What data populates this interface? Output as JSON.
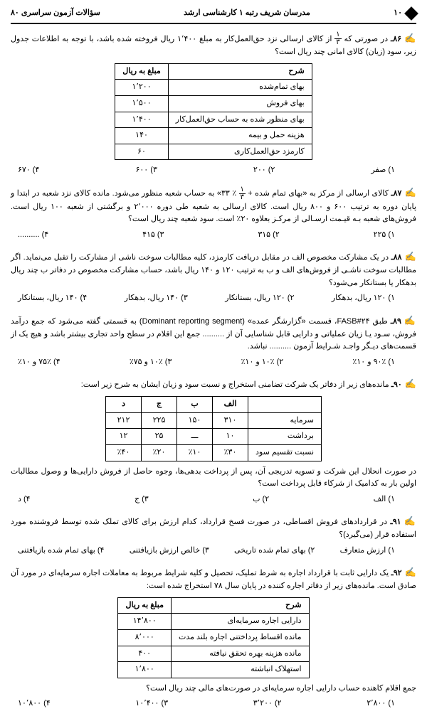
{
  "header": {
    "right_page": "۱۰",
    "center": "مدرسان شریف رتبه ۱ کارشناسی ارشد",
    "left": "سؤالات آزمون سراسری  ۸۰"
  },
  "q86": {
    "num": "۸۶ـ",
    "text_a": "در صورتی که ",
    "frac_n": "۱",
    "frac_d": "۳",
    "text_b": " از کالای ارسالی نزد حق‌العمل‌کار به مبلغ ۱٬۴۰۰ ریال فروخته شده باشد، با توجه به اطلاعات جدول زیر، سود (زیان) کالای امانی چند ریال است؟",
    "table_header_desc": "شرح",
    "table_header_amt": "مبلغ به ریال",
    "rows": [
      {
        "desc": "بهای تمام‌شده",
        "amt": "۱٬۲۰۰"
      },
      {
        "desc": "بهای فروش",
        "amt": "۱٬۵۰۰"
      },
      {
        "desc": "بهای منظور شده به حساب حق‌العمل‌کار",
        "amt": "۱٬۴۰۰"
      },
      {
        "desc": "هزینه حمل و بیمه",
        "amt": "۱۴۰"
      },
      {
        "desc": "کارمزد حق‌العمل‌کاری",
        "amt": "۶۰"
      }
    ],
    "opts": {
      "o1": "۱) صفر",
      "o2": "۲) ۲۰۰",
      "o3": "۳) ۶۰۰",
      "o4": "۴) ۶۷۰"
    }
  },
  "q87": {
    "num": "۸۷ـ",
    "text_a": "کالای ارسالی از مرکز به «بهای تمام شده + ",
    "frac_n": "۱",
    "frac_d": "۳",
    "text_b": "٪ ۳۳» به حساب شعبه منظور می‌شود. مانده کالای نزد شعبه در ابتدا و پایان دوره به ترتیب ۶۰۰ و ۸۰۰ ریال است. کالای ارسالی به شعبه طی دوره ۲٬۰۰۰ و برگشتی از شعبه ۱۰۰ ریال است. فروش‌های شعبه بـه قیـمت ارسـالی از مرکـز بعلاوه ۲۰٪ است. سود شعبه چند ریال است؟",
    "opts": {
      "o1": "۱) ۲۲۵",
      "o2": "۲) ۳۱۵",
      "o3": "۳) ۴۱۵",
      "o4": "۴) .........."
    }
  },
  "q88": {
    "num": "۸۸ـ",
    "text": "در یک مشارکت مخصوص الف در مقابل دریافت کارمزد، کلیه مطالبات سوخت ناشی از مشارکت را تقبل می‌نماید. اگر مطالبات سوخت  ناشـی از فروش‌های الف و ب به ترتیب ۱۲۰ و ۱۴۰ ریال باشد، حساب مشارکت مخصوص در دفاتر ب چند ریال بدهکار یا بستانکار می‌شود؟",
    "opts": {
      "o1": "۱) ۱۲۰ ریال، بدهکار",
      "o2": "۲) ۱۲۰ ریال، بستانکار",
      "o3": "۳) ۱۴۰ ریال، بدهکار",
      "o4": "۴) ۱۴۰ ریال، بستانکار"
    }
  },
  "q89": {
    "num": "۸۹ـ",
    "text": "طبق FASB#۲۴، قسمت «گزارشگر عمده» (Dominant reporting segment) به قسمتی گفته می‌شود که جمع درآمد فروش، سـود یـا زیان عملیاتی و دارایی قابل شناسایی آن از .......... جمع این اقلام در سطح واحد تجاری بیشتر باشد و هیچ یک از قسمت‌های دیـگر واجـد شـرایط آزمون .......... نباشد.",
    "opts": {
      "o1": "۱) ۹۰٪ و ۱۰٪",
      "o2": "۲) ۱۰٪ و ۱۰٪",
      "o3": "۳) ۱۰٪ و ۷۵٪",
      "o4": "۴) ۷۵٪ و ۱۰٪"
    }
  },
  "q90": {
    "num": "۹۰ـ",
    "text": "مانده‌های زیر از دفاتر یک شرکت تضامنی استخراج و نسبت سود و زیان ایشان به شرح زیر است:",
    "cols": [
      "",
      "الف",
      "ب",
      "ج",
      "د"
    ],
    "rows": [
      {
        "k": "سرمایه",
        "a": "۳۱۰",
        "b": "۱۵۰",
        "c": "۲۲۵",
        "d": "۲۱۲"
      },
      {
        "k": "برداشت",
        "a": "۱۰",
        "b": "ـــ",
        "c": "۲۵",
        "d": "۱۲"
      },
      {
        "k": "نسبت تقسیم سود",
        "a": "٪۳۰",
        "b": "٪۱۰",
        "c": "٪۲۰",
        "d": "٪۴۰"
      }
    ],
    "tail": "در صورت انحلال این شرکت و تسویه تدریجی آن، پس از پرداخت بدهی‌ها، وجوه حاصل از فروش دارایی‌ها و وصول مطالبات اولین بار به کدامیک از شرکاء قابل پرداخت است؟",
    "opts": {
      "o1": "۱) الف",
      "o2": "۲) ب",
      "o3": "۳) ج",
      "o4": "۴) د"
    }
  },
  "q91": {
    "num": "۹۱ـ",
    "text": "در قراردادهای فروش اقساطی، در صورت فسخ قرارداد، کدام ارزش برای کالای تملک شده توسط فروشنده مورد استفاده قرار (می‌گیرد)؟",
    "opts": {
      "o1": "۱) ارزش متعارف",
      "o2": "۲) بهای تمام شده تاریخی",
      "o3": "۳) خالص ارزش بازیافتنی",
      "o4": "۴) بهای تمام شده بازیافتنی"
    }
  },
  "q92": {
    "num": "۹۲ـ",
    "text": "یک دارایی ثابت با قرارداد اجاره به شرط تملیک، تحصیل و کلیه شرایط مربوط به معاملات اجاره سرمایه‌ای در مورد آن صادق است. مانده‌های زیر از دفاتر اجاره کننده در پایان سال ۷۸ استخراج شده است:",
    "th_desc": "شرح",
    "th_amt": "مبلغ به ریال",
    "rows": [
      {
        "desc": "دارایی اجاره سرمایه‌ای",
        "amt": "۱۴٬۸۰۰"
      },
      {
        "desc": "مانده اقساط پرداختنی اجاره بلند مدت",
        "amt": "۸٬۰۰۰"
      },
      {
        "desc": "مانده هزینه بهره تحقق نیافته",
        "amt": "۴۰۰"
      },
      {
        "desc": "استهلاک انباشته",
        "amt": "۱٬۸۰۰"
      }
    ],
    "tail": "جمع اقلام کاهنده حساب دارایی اجاره سرمایه‌ای در صورت‌های مالی چند ریال است؟",
    "opts": {
      "o1": "۱) ۲٬۸۰۰",
      "o2": "۲) ۳٬۲۰۰",
      "o3": "۳) ۱۰٬۴۰۰",
      "o4": "۴) ۱۰٬۸۰۰"
    }
  }
}
